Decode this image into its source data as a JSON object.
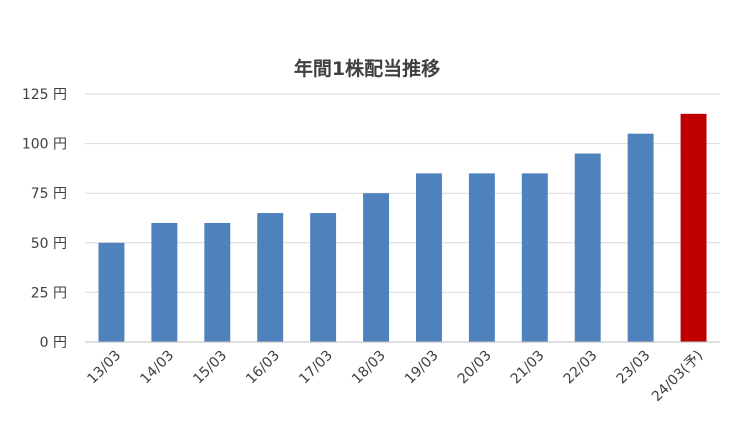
{
  "chart_data": {
    "type": "bar",
    "title": "年間1株配当推移",
    "categories": [
      "13/03",
      "14/03",
      "15/03",
      "16/03",
      "17/03",
      "18/03",
      "19/03",
      "20/03",
      "21/03",
      "22/03",
      "23/03",
      "24/03(予)"
    ],
    "values": [
      50,
      60,
      60,
      65,
      65,
      75,
      85,
      85,
      85,
      95,
      105,
      115
    ],
    "bar_colors": [
      "#4f81bd",
      "#4f81bd",
      "#4f81bd",
      "#4f81bd",
      "#4f81bd",
      "#4f81bd",
      "#4f81bd",
      "#4f81bd",
      "#4f81bd",
      "#4f81bd",
      "#4f81bd",
      "#c00000"
    ],
    "yticks": [
      0,
      25,
      50,
      75,
      100,
      125
    ],
    "ytick_labels": [
      "0 円",
      "25 円",
      "50 円",
      "75 円",
      "100 円",
      "125 円"
    ],
    "ylim": [
      0,
      125
    ],
    "xlabel": "",
    "ylabel": "",
    "grid": true,
    "legend": "none"
  }
}
